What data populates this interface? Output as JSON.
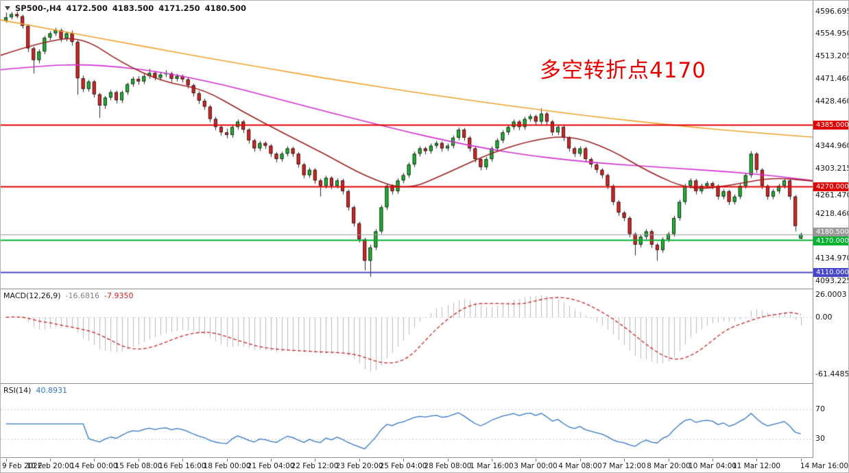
{
  "header": {
    "symbol": "SP500-,H4",
    "open": "4172.500",
    "high": "4183.500",
    "low": "4171.250",
    "close": "4180.500"
  },
  "macd_label": {
    "name": "MACD(12,26,9)",
    "main": "-16.6816",
    "signal": "-7.9350"
  },
  "rsi_label": {
    "name": "RSI(14)",
    "value": "40.8931"
  },
  "ui": {
    "background": "#ffffff",
    "separator": "#8c8c8c",
    "text": "#141414",
    "icons": {
      "one_click_trading": "triangle-down-icon"
    }
  },
  "chart_data": [
    {
      "type": "candlestick",
      "title": "SP500-,H4",
      "timeframe": "H4",
      "annotation": {
        "text": "多空转折点4170",
        "color": "#e60000"
      },
      "price_range": {
        "top": 4617,
        "bottom": 4079
      },
      "price_ticks": [
        4596.695,
        4554.95,
        4513.205,
        4471.46,
        4428.46,
        4344.96,
        4303.215,
        4261.47,
        4218.46,
        4134.97,
        4093.225
      ],
      "x_label_every_n_candles": 8,
      "x_axis_labels": [
        "9 Feb 2022",
        "10 Feb 20:00",
        "14 Feb 00:00",
        "15 Feb 08:00",
        "16 Feb 16:00",
        "18 Feb 00:00",
        "21 Feb 04:00",
        "22 Feb 12:00",
        "23 Feb 20:00",
        "25 Feb 04:00",
        "28 Feb 08:00",
        "1 Mar 16:00",
        "3 Mar 00:00",
        "4 Mar 08:00",
        "7 Mar 12:00",
        "8 Mar 20:00",
        "10 Mar 04:00",
        "11 Mar 12:00",
        "14 Mar 16:00"
      ],
      "up_color": "#1fb832",
      "down_color": "#e02222",
      "moving_averages": [
        {
          "name": "slow-ma",
          "color": "#efa22a",
          "points": [
            4581,
            4567,
            4553,
            4539,
            4525,
            4511,
            4498,
            4485,
            4472,
            4460,
            4448,
            4437,
            4426,
            4416,
            4406,
            4397,
            4389,
            4381,
            4374,
            4368,
            4362
          ]
        },
        {
          "name": "medium-ma",
          "color": "#d22ed2",
          "points": [
            4488,
            4495,
            4498,
            4493,
            4483,
            4468,
            4450,
            4430,
            4410,
            4391,
            4372,
            4355,
            4340,
            4328,
            4319,
            4312,
            4307,
            4302,
            4297,
            4290,
            4281
          ]
        },
        {
          "name": "fast-ma",
          "color": "#9c2020",
          "points": [
            4515,
            4540,
            4550,
            4500,
            4465,
            4452,
            4408,
            4368,
            4330,
            4288,
            4262,
            4295,
            4330,
            4355,
            4366,
            4340,
            4295,
            4263,
            4272,
            4287,
            4280
          ]
        }
      ],
      "horizontal_lines": [
        {
          "price": 4385.0,
          "label": "4385.000",
          "color": "#e00000",
          "width": 2
        },
        {
          "price": 4270.0,
          "label": "4270.000",
          "color": "#e00000",
          "width": 2
        },
        {
          "price": 4180.5,
          "label": "4180.500",
          "color": "#9a9a9a",
          "width": 1,
          "dy": -4
        },
        {
          "price": 4170.0,
          "label": "4170.000",
          "color": "#00b22d",
          "width": 2,
          "dy": 1
        },
        {
          "price": 4110.0,
          "label": "4110.000",
          "color": "#4646c8",
          "width": 2
        }
      ],
      "candles": [
        [
          4580,
          4595,
          4576,
          4586
        ],
        [
          4586,
          4596,
          4582,
          4592
        ],
        [
          4592,
          4597,
          4584,
          4588
        ],
        [
          4588,
          4591,
          4565,
          4570
        ],
        [
          4570,
          4573,
          4521,
          4528
        ],
        [
          4528,
          4531,
          4481,
          4506
        ],
        [
          4506,
          4526,
          4500,
          4522
        ],
        [
          4522,
          4551,
          4517,
          4548
        ],
        [
          4548,
          4560,
          4543,
          4556
        ],
        [
          4556,
          4566,
          4551,
          4562
        ],
        [
          4562,
          4565,
          4540,
          4546
        ],
        [
          4546,
          4559,
          4541,
          4556
        ],
        [
          4556,
          4561,
          4533,
          4540
        ],
        [
          4540,
          4543,
          4441,
          4472
        ],
        [
          4472,
          4477,
          4446,
          4452
        ],
        [
          4452,
          4469,
          4447,
          4466
        ],
        [
          4466,
          4469,
          4436,
          4442
        ],
        [
          4442,
          4445,
          4398,
          4421
        ],
        [
          4421,
          4439,
          4415,
          4436
        ],
        [
          4436,
          4450,
          4431,
          4446
        ],
        [
          4446,
          4449,
          4425,
          4431
        ],
        [
          4431,
          4449,
          4426,
          4446
        ],
        [
          4446,
          4464,
          4441,
          4461
        ],
        [
          4461,
          4475,
          4456,
          4471
        ],
        [
          4471,
          4476,
          4460,
          4466
        ],
        [
          4466,
          4480,
          4461,
          4476
        ],
        [
          4476,
          4490,
          4471,
          4482
        ],
        [
          4482,
          4486,
          4468,
          4473
        ],
        [
          4473,
          4483,
          4468,
          4479
        ],
        [
          4479,
          4487,
          4474,
          4481
        ],
        [
          4481,
          4484,
          4465,
          4471
        ],
        [
          4471,
          4480,
          4466,
          4476
        ],
        [
          4476,
          4479,
          4464,
          4470
        ],
        [
          4470,
          4473,
          4453,
          4459
        ],
        [
          4459,
          4462,
          4438,
          4444
        ],
        [
          4444,
          4448,
          4424,
          4430
        ],
        [
          4430,
          4434,
          4413,
          4419
        ],
        [
          4419,
          4422,
          4390,
          4396
        ],
        [
          4396,
          4400,
          4375,
          4381
        ],
        [
          4381,
          4385,
          4365,
          4371
        ],
        [
          4371,
          4378,
          4360,
          4366
        ],
        [
          4366,
          4385,
          4361,
          4381
        ],
        [
          4381,
          4395,
          4376,
          4391
        ],
        [
          4391,
          4394,
          4370,
          4376
        ],
        [
          4376,
          4379,
          4350,
          4356
        ],
        [
          4356,
          4359,
          4335,
          4341
        ],
        [
          4341,
          4355,
          4336,
          4351
        ],
        [
          4351,
          4354,
          4340,
          4346
        ],
        [
          4346,
          4349,
          4325,
          4331
        ],
        [
          4331,
          4334,
          4315,
          4321
        ],
        [
          4321,
          4335,
          4316,
          4331
        ],
        [
          4331,
          4345,
          4326,
          4341
        ],
        [
          4341,
          4344,
          4325,
          4331
        ],
        [
          4331,
          4334,
          4305,
          4311
        ],
        [
          4311,
          4314,
          4285,
          4291
        ],
        [
          4291,
          4305,
          4286,
          4301
        ],
        [
          4301,
          4304,
          4275,
          4281
        ],
        [
          4281,
          4284,
          4251,
          4271
        ],
        [
          4271,
          4290,
          4266,
          4286
        ],
        [
          4286,
          4289,
          4265,
          4271
        ],
        [
          4271,
          4285,
          4266,
          4281
        ],
        [
          4281,
          4284,
          4255,
          4261
        ],
        [
          4261,
          4264,
          4225,
          4231
        ],
        [
          4231,
          4234,
          4195,
          4201
        ],
        [
          4201,
          4204,
          4165,
          4171
        ],
        [
          4171,
          4174,
          4113,
          4131
        ],
        [
          4131,
          4161,
          4101,
          4156
        ],
        [
          4156,
          4190,
          4151,
          4186
        ],
        [
          4186,
          4235,
          4181,
          4231
        ],
        [
          4231,
          4275,
          4226,
          4271
        ],
        [
          4271,
          4274,
          4255,
          4261
        ],
        [
          4261,
          4285,
          4256,
          4281
        ],
        [
          4281,
          4295,
          4276,
          4291
        ],
        [
          4291,
          4315,
          4286,
          4311
        ],
        [
          4311,
          4335,
          4306,
          4331
        ],
        [
          4331,
          4345,
          4326,
          4341
        ],
        [
          4341,
          4344,
          4330,
          4336
        ],
        [
          4336,
          4350,
          4331,
          4346
        ],
        [
          4346,
          4355,
          4341,
          4351
        ],
        [
          4351,
          4354,
          4335,
          4341
        ],
        [
          4341,
          4350,
          4336,
          4346
        ],
        [
          4346,
          4365,
          4341,
          4361
        ],
        [
          4361,
          4380,
          4356,
          4376
        ],
        [
          4376,
          4379,
          4355,
          4361
        ],
        [
          4361,
          4364,
          4335,
          4341
        ],
        [
          4341,
          4344,
          4315,
          4321
        ],
        [
          4321,
          4324,
          4300,
          4306
        ],
        [
          4306,
          4325,
          4301,
          4321
        ],
        [
          4321,
          4345,
          4316,
          4341
        ],
        [
          4341,
          4360,
          4336,
          4356
        ],
        [
          4356,
          4375,
          4351,
          4371
        ],
        [
          4371,
          4385,
          4366,
          4381
        ],
        [
          4381,
          4395,
          4376,
          4391
        ],
        [
          4391,
          4394,
          4375,
          4381
        ],
        [
          4381,
          4400,
          4376,
          4396
        ],
        [
          4396,
          4405,
          4391,
          4401
        ],
        [
          4401,
          4404,
          4385,
          4391
        ],
        [
          4391,
          4416,
          4386,
          4406
        ],
        [
          4406,
          4409,
          4385,
          4391
        ],
        [
          4391,
          4394,
          4365,
          4371
        ],
        [
          4371,
          4385,
          4366,
          4381
        ],
        [
          4381,
          4384,
          4355,
          4361
        ],
        [
          4361,
          4364,
          4335,
          4341
        ],
        [
          4341,
          4344,
          4325,
          4331
        ],
        [
          4331,
          4345,
          4326,
          4341
        ],
        [
          4341,
          4344,
          4315,
          4321
        ],
        [
          4321,
          4324,
          4305,
          4311
        ],
        [
          4311,
          4314,
          4295,
          4301
        ],
        [
          4301,
          4304,
          4285,
          4291
        ],
        [
          4291,
          4294,
          4265,
          4271
        ],
        [
          4271,
          4274,
          4235,
          4241
        ],
        [
          4241,
          4244,
          4215,
          4221
        ],
        [
          4221,
          4224,
          4205,
          4211
        ],
        [
          4211,
          4214,
          4175,
          4181
        ],
        [
          4181,
          4184,
          4141,
          4161
        ],
        [
          4161,
          4180,
          4156,
          4176
        ],
        [
          4176,
          4190,
          4171,
          4186
        ],
        [
          4186,
          4189,
          4155,
          4161
        ],
        [
          4161,
          4164,
          4131,
          4151
        ],
        [
          4151,
          4175,
          4146,
          4171
        ],
        [
          4171,
          4185,
          4166,
          4181
        ],
        [
          4181,
          4215,
          4176,
          4211
        ],
        [
          4211,
          4245,
          4206,
          4241
        ],
        [
          4241,
          4275,
          4236,
          4271
        ],
        [
          4271,
          4285,
          4266,
          4281
        ],
        [
          4281,
          4284,
          4255,
          4261
        ],
        [
          4261,
          4275,
          4256,
          4271
        ],
        [
          4271,
          4280,
          4266,
          4276
        ],
        [
          4276,
          4279,
          4265,
          4271
        ],
        [
          4271,
          4274,
          4245,
          4251
        ],
        [
          4251,
          4265,
          4246,
          4261
        ],
        [
          4261,
          4264,
          4235,
          4241
        ],
        [
          4241,
          4255,
          4236,
          4251
        ],
        [
          4251,
          4275,
          4246,
          4271
        ],
        [
          4271,
          4295,
          4266,
          4291
        ],
        [
          4291,
          4336,
          4286,
          4331
        ],
        [
          4331,
          4334,
          4295,
          4301
        ],
        [
          4301,
          4304,
          4265,
          4271
        ],
        [
          4271,
          4274,
          4245,
          4251
        ],
        [
          4251,
          4265,
          4246,
          4261
        ],
        [
          4261,
          4275,
          4256,
          4271
        ],
        [
          4271,
          4285,
          4266,
          4281
        ],
        [
          4281,
          4284,
          4245,
          4251
        ],
        [
          4251,
          4254,
          4186,
          4196
        ],
        [
          4172.5,
          4183.5,
          4171.25,
          4180.5
        ]
      ]
    },
    {
      "type": "bar",
      "name": "MACD(12,26,9)",
      "current_values": [
        -16.6816,
        -7.935
      ],
      "ylim": [
        -70,
        30
      ],
      "axis_labels": [
        {
          "value": 26.0003,
          "text": "26.0003"
        },
        {
          "value": 0,
          "text": "0.00"
        },
        {
          "value": -61.4485,
          "text": "-61.4485"
        }
      ],
      "histogram_color": "#b8b8b8",
      "signal_color": "#cc2222",
      "derived_from": "candles closes via MACD(12,26,9): histogram = EMA12-EMA26, signal = SMA9 of histogram"
    },
    {
      "type": "line",
      "name": "RSI(14)",
      "current_value": 40.8931,
      "ylim": [
        5,
        105
      ],
      "levels": [
        70,
        30
      ],
      "line_color": "#2f75c4",
      "level_color": "#c4c4c4",
      "derived_from": "candles closes via RSI(14)"
    }
  ]
}
